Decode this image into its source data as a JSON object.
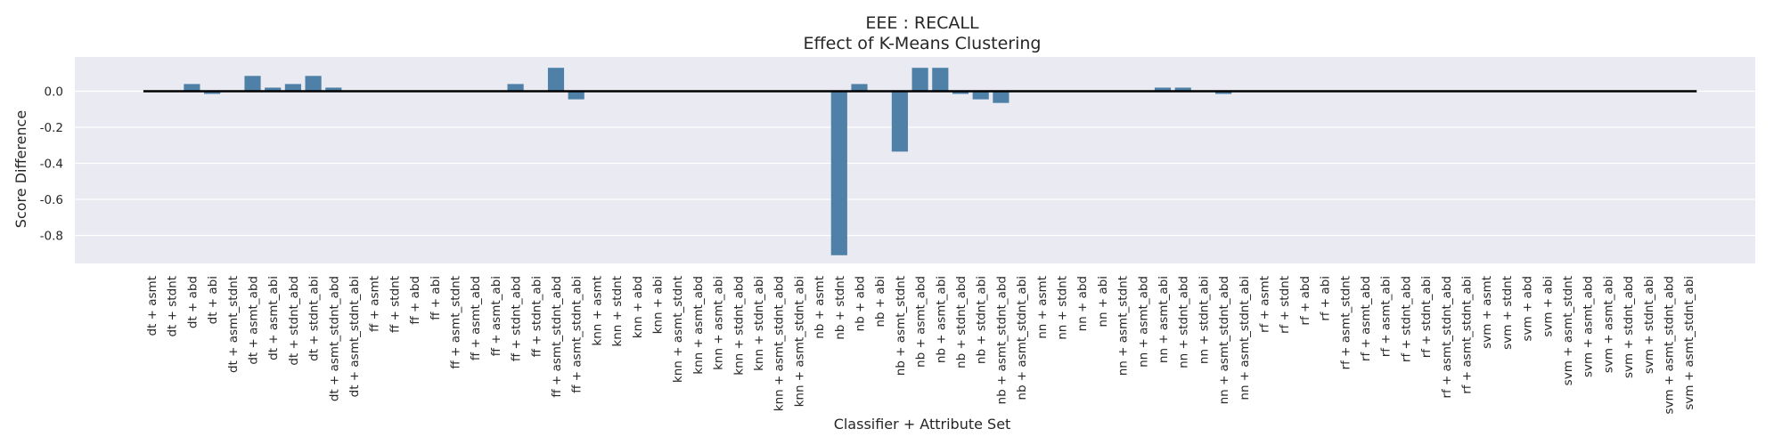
{
  "chart_data": {
    "type": "bar",
    "title": "EEE : RECALL",
    "subtitle": "Effect of K-Means Clustering",
    "xlabel": "Classifier + Attribute Set",
    "ylabel": "Score Difference",
    "ylim": [
      -0.96,
      0.19
    ],
    "yticks": [
      0.0,
      -0.2,
      -0.4,
      -0.6,
      -0.8
    ],
    "grid": true,
    "bar_color": "#4f81a8",
    "background_color": "#eaeaf2",
    "zero_line_color": "#000000",
    "categories": [
      "dt + asmt",
      "dt + stdnt",
      "dt + abd",
      "dt + abi",
      "dt + asmt_stdnt",
      "dt + asmt_abd",
      "dt + asmt_abi",
      "dt + stdnt_abd",
      "dt + stdnt_abi",
      "dt + asmt_stdnt_abd",
      "dt + asmt_stdnt_abi",
      "ff + asmt",
      "ff + stdnt",
      "ff + abd",
      "ff + abi",
      "ff + asmt_stdnt",
      "ff + asmt_abd",
      "ff + asmt_abi",
      "ff + stdnt_abd",
      "ff + stdnt_abi",
      "ff + asmt_stdnt_abd",
      "ff + asmt_stdnt_abi",
      "knn + asmt",
      "knn + stdnt",
      "knn + abd",
      "knn + abi",
      "knn + asmt_stdnt",
      "knn + asmt_abd",
      "knn + asmt_abi",
      "knn + stdnt_abd",
      "knn + stdnt_abi",
      "knn + asmt_stdnt_abd",
      "knn + asmt_stdnt_abi",
      "nb + asmt",
      "nb + stdnt",
      "nb + abd",
      "nb + abi",
      "nb + asmt_stdnt",
      "nb + asmt_abd",
      "nb + asmt_abi",
      "nb + stdnt_abd",
      "nb + stdnt_abi",
      "nb + asmt_stdnt_abd",
      "nb + asmt_stdnt_abi",
      "nn + asmt",
      "nn + stdnt",
      "nn + abd",
      "nn + abi",
      "nn + asmt_stdnt",
      "nn + asmt_abd",
      "nn + asmt_abi",
      "nn + stdnt_abd",
      "nn + stdnt_abi",
      "nn + asmt_stdnt_abd",
      "nn + asmt_stdnt_abi",
      "rf + asmt",
      "rf + stdnt",
      "rf + abd",
      "rf + abi",
      "rf + asmt_stdnt",
      "rf + asmt_abd",
      "rf + asmt_abi",
      "rf + stdnt_abd",
      "rf + stdnt_abi",
      "rf + asmt_stdnt_abd",
      "rf + asmt_stdnt_abi",
      "svm + asmt",
      "svm + stdnt",
      "svm + abd",
      "svm + abi",
      "svm + asmt_stdnt",
      "svm + asmt_abd",
      "svm + asmt_abi",
      "svm + stdnt_abd",
      "svm + stdnt_abi",
      "svm + asmt_stdnt_abd",
      "svm + asmt_stdnt_abi"
    ],
    "values": [
      0,
      0,
      0.04,
      -0.015,
      0,
      0.085,
      0.02,
      0.04,
      0.085,
      0.02,
      0,
      0,
      0,
      0,
      0,
      0,
      0,
      0,
      0.04,
      0,
      0.13,
      -0.045,
      0,
      0,
      0,
      0,
      0,
      0,
      0,
      0,
      0,
      0,
      0,
      0,
      -0.91,
      0.04,
      0,
      -0.335,
      0.13,
      0.13,
      -0.015,
      -0.045,
      -0.065,
      0,
      0,
      0,
      0,
      0,
      0,
      0,
      0.02,
      0.02,
      0,
      -0.015,
      0,
      0,
      0,
      0,
      0,
      0,
      0,
      0,
      0,
      0,
      0,
      0,
      0,
      0,
      0,
      0,
      0,
      0,
      0,
      0,
      0,
      0,
      0
    ]
  }
}
